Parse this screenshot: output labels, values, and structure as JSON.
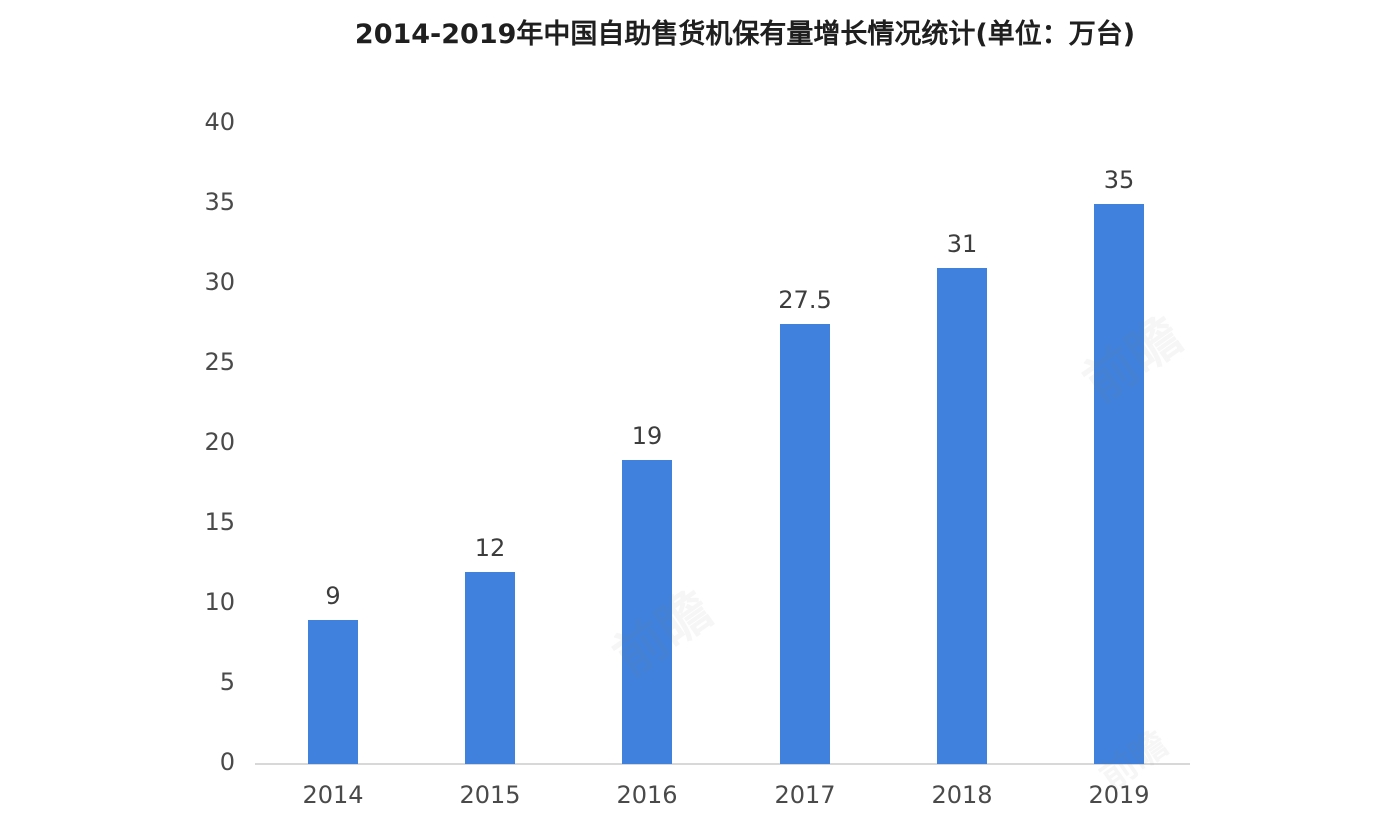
{
  "title": "2014-2019年中国自助售货机保有量增长情况统计(单位：万台)",
  "watermarks": [
    {
      "text": "前瞻"
    },
    {
      "text": "前瞻"
    },
    {
      "text": "前瞻"
    }
  ],
  "colors": {
    "background": "#FFFFFF",
    "bar": "#3F81DC",
    "axis_line": "#D8D8D8",
    "tick_label": "#4A4A4A",
    "data_label": "#3D3D3D",
    "title": "#1F1F1F"
  },
  "chart_data": {
    "type": "bar",
    "title": "2014-2019年中国自助售货机保有量增长情况统计(单位：万台)",
    "categories": [
      "2014",
      "2015",
      "2016",
      "2017",
      "2018",
      "2019"
    ],
    "values": [
      9,
      12,
      19,
      27.5,
      31,
      35
    ],
    "data_labels": [
      "9",
      "12",
      "19",
      "27.5",
      "31",
      "35"
    ],
    "xlabel": "",
    "ylabel": "",
    "unit": "万台",
    "ylim": [
      0,
      40
    ],
    "yticks": [
      0,
      5,
      10,
      15,
      20,
      25,
      30,
      35,
      40
    ],
    "grid": false,
    "legend": false,
    "bar_color": "#3F81DC"
  }
}
